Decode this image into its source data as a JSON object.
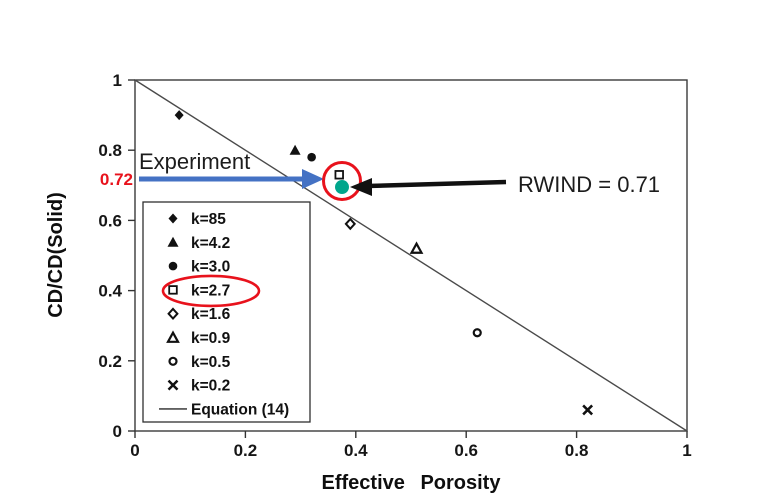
{
  "chart_data": {
    "type": "scatter",
    "xlabel": "Effective Porosity",
    "ylabel": "CD/CD(Solid)",
    "xlim": [
      0,
      1
    ],
    "ylim": [
      0,
      1
    ],
    "x_ticks": [
      0,
      0.2,
      0.4,
      0.6,
      0.8,
      1
    ],
    "x_tick_labels": [
      "0",
      "0.2",
      "0.4",
      "0.6",
      "0.8",
      "1"
    ],
    "y_ticks": [
      0,
      0.2,
      0.4,
      0.6,
      0.8,
      1
    ],
    "y_tick_labels": [
      "0",
      "0.2",
      "0.4",
      "0.6",
      "0.8",
      "1"
    ],
    "grid": false,
    "legend_position": "inside-left",
    "series": [
      {
        "name": "k=85",
        "marker": "diamond-filled",
        "points": [
          [
            0.08,
            0.9
          ]
        ]
      },
      {
        "name": "k=4.2",
        "marker": "triangle-filled",
        "points": [
          [
            0.29,
            0.8
          ]
        ]
      },
      {
        "name": "k=3.0",
        "marker": "circle-filled",
        "points": [
          [
            0.32,
            0.78
          ]
        ]
      },
      {
        "name": "k=2.7",
        "marker": "square-open",
        "points": [
          [
            0.37,
            0.73
          ]
        ],
        "highlighted": true
      },
      {
        "name": "k=1.6",
        "marker": "diamond-open",
        "points": [
          [
            0.39,
            0.59
          ]
        ]
      },
      {
        "name": "k=0.9",
        "marker": "triangle-open",
        "points": [
          [
            0.51,
            0.52
          ]
        ]
      },
      {
        "name": "k=0.5",
        "marker": "circle-open",
        "points": [
          [
            0.62,
            0.28
          ]
        ]
      },
      {
        "name": "k=0.2",
        "marker": "x-cross",
        "points": [
          [
            0.82,
            0.06
          ]
        ]
      },
      {
        "name": "Equation (14)",
        "marker": "line",
        "line": [
          [
            0,
            1
          ],
          [
            1,
            0
          ]
        ]
      }
    ],
    "experiment_point": {
      "x": 0.375,
      "y": 0.695
    }
  },
  "annotations": {
    "experiment_label": "Experiment",
    "experiment_value": "0.72",
    "rwind_label": "RWIND = 0.71"
  },
  "colors": {
    "arrow_blue": "#4472c4",
    "highlight_red": "#e8121c",
    "experiment_teal": "#00a68c"
  }
}
